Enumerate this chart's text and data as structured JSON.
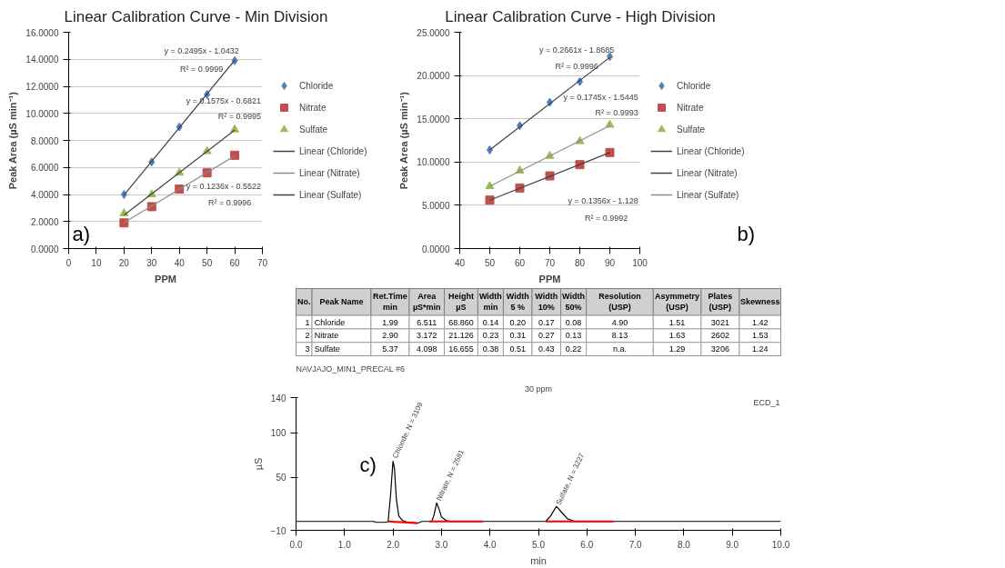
{
  "chart_data": [
    {
      "type": "scatter",
      "title": "Linear Calibration Curve - Min Division",
      "xlabel": "PPM",
      "ylabel": "Peak Area (µS min⁻¹)",
      "xlim": [
        0,
        70
      ],
      "xticks": [
        0,
        10,
        20,
        30,
        40,
        50,
        60,
        70
      ],
      "ylim": [
        0,
        16
      ],
      "yticks": [
        {
          "value": 0,
          "label": "0.0000"
        },
        {
          "value": 2,
          "label": "2.0000"
        },
        {
          "value": 4,
          "label": "4.0000"
        },
        {
          "value": 6,
          "label": "6.0000"
        },
        {
          "value": 8,
          "label": "8.0000"
        },
        {
          "value": 10,
          "label": "10.0000"
        },
        {
          "value": 12,
          "label": "12.0000"
        },
        {
          "value": 14,
          "label": "14.0000"
        },
        {
          "value": 16,
          "label": "16.0000"
        }
      ],
      "grid": "y",
      "legend": "right",
      "x": [
        20,
        30,
        40,
        50,
        60
      ],
      "series": [
        {
          "name": "Chloride",
          "color": "#4f81bd",
          "marker": "diamond",
          "values": [
            4.0,
            6.4,
            9.0,
            11.4,
            13.9
          ]
        },
        {
          "name": "Nitrate",
          "color": "#c0504d",
          "marker": "square",
          "values": [
            1.9,
            3.1,
            4.4,
            5.6,
            6.9
          ]
        },
        {
          "name": "Sulfate",
          "color": "#9bbb59",
          "marker": "triangle",
          "values": [
            2.6,
            4.0,
            5.6,
            7.2,
            8.8
          ]
        },
        {
          "name": "Linear (Chloride)",
          "type": "line",
          "color": "#404040",
          "x": [
            20,
            60
          ],
          "values": [
            3.95,
            13.93
          ]
        },
        {
          "name": "Linear (Nitrate)",
          "type": "line",
          "color": "#8c8c8c",
          "x": [
            20,
            60
          ],
          "values": [
            1.92,
            6.86
          ]
        },
        {
          "name": "Linear (Sulfate)",
          "type": "line",
          "color": "#404040",
          "x": [
            20,
            60
          ],
          "values": [
            2.47,
            8.77
          ]
        }
      ],
      "annotations": [
        "y = 0.2495x - 1.0432",
        "R² = 0.9999",
        "y = 0.1575x - 0.6821",
        "R² = 0.9995",
        "y = 0.1236x - 0.5522",
        "R² = 0.9996",
        "a)"
      ]
    },
    {
      "type": "scatter",
      "title": "Linear Calibration Curve - High Division",
      "xlabel": "PPM",
      "ylabel": "Peak Area (µS min⁻¹)",
      "xlim": [
        40,
        100
      ],
      "xticks": [
        40,
        50,
        60,
        70,
        80,
        90,
        100
      ],
      "ylim": [
        0,
        25
      ],
      "yticks": [
        {
          "value": 0,
          "label": "0.0000"
        },
        {
          "value": 5,
          "label": "5.0000"
        },
        {
          "value": 10,
          "label": "10.0000"
        },
        {
          "value": 15,
          "label": "15.0000"
        },
        {
          "value": 20,
          "label": "20.0000"
        },
        {
          "value": 25,
          "label": "25.0000"
        }
      ],
      "grid": "y",
      "legend": "right",
      "x": [
        50,
        60,
        70,
        80,
        90
      ],
      "series": [
        {
          "name": "Chloride",
          "color": "#4f81bd",
          "marker": "diamond",
          "values": [
            11.4,
            14.2,
            16.9,
            19.3,
            22.2
          ]
        },
        {
          "name": "Nitrate",
          "color": "#c0504d",
          "marker": "square",
          "values": [
            5.6,
            7.0,
            8.4,
            9.7,
            11.1
          ]
        },
        {
          "name": "Sulfate",
          "color": "#9bbb59",
          "marker": "triangle",
          "values": [
            7.2,
            9.0,
            10.7,
            12.4,
            14.3
          ]
        },
        {
          "name": "Linear (Chloride)",
          "type": "line",
          "color": "#404040",
          "x": [
            50,
            90
          ],
          "values": [
            11.4,
            22.1
          ]
        },
        {
          "name": "Linear (Nitrate)",
          "type": "line",
          "color": "#404040",
          "x": [
            50,
            90
          ],
          "values": [
            5.6,
            11.1
          ]
        },
        {
          "name": "Linear (Sulfate)",
          "type": "line",
          "color": "#8c8c8c",
          "x": [
            50,
            90
          ],
          "values": [
            7.2,
            14.2
          ]
        }
      ],
      "annotations": [
        "y = 0.2661x - 1.8685",
        "R² = 0.9996",
        "y = 0.1745x - 1.5445",
        "R² = 0.9993",
        "y = 0.1356x - 1.128",
        "R² = 0.9992",
        "b)"
      ]
    },
    {
      "type": "other",
      "categories": [
        "No.",
        "Peak Name",
        "Ret.Time\nmin",
        "Area\nµS*min",
        "Height\nµS",
        "Width\nmin",
        "Width\n5 %",
        "Width\n10%",
        "Width\n50%",
        "Resolution\n(USP)",
        "Asymmetry\n(USP)",
        "Plates\n(USP)",
        "Skewness"
      ],
      "cell_labels": [
        [
          "1",
          "Chloride",
          "1.99",
          "6.511",
          "68.860",
          "0.14",
          "0.20",
          "0.17",
          "0.08",
          "4.90",
          "1.51",
          "3021",
          "1.42"
        ],
        [
          "2",
          "Nitrate",
          "2.90",
          "3.172",
          "21.126",
          "0.23",
          "0.31",
          "0.27",
          "0.13",
          "8.13",
          "1.63",
          "2602",
          "1.53"
        ],
        [
          "3",
          "Sulfate",
          "5.37",
          "4.098",
          "16.655",
          "0.38",
          "0.51",
          "0.43",
          "0.22",
          "n.a.",
          "1.29",
          "3206",
          "1.24"
        ]
      ]
    },
    {
      "type": "line",
      "title": "NAVJAJO_MIN1_PRECAL #6",
      "subtitle": "30 ppm",
      "xlabel": "min",
      "ylabel": "µS",
      "xlim": [
        0,
        10
      ],
      "xticks": [
        {
          "value": 0,
          "label": "0.0"
        },
        {
          "value": 1,
          "label": "1.0"
        },
        {
          "value": 2,
          "label": "2.0"
        },
        {
          "value": 3,
          "label": "3.0"
        },
        {
          "value": 4,
          "label": "4.0"
        },
        {
          "value": 5,
          "label": "5.0"
        },
        {
          "value": 6,
          "label": "6.0"
        },
        {
          "value": 7,
          "label": "7.0"
        },
        {
          "value": 8,
          "label": "8.0"
        },
        {
          "value": 9,
          "label": "9.0"
        },
        {
          "value": 10,
          "label": "10.0"
        }
      ],
      "ylim": [
        -10,
        140
      ],
      "yticks": [
        -10,
        50,
        100,
        140
      ],
      "series": [
        {
          "color": "#000000",
          "x": [
            0,
            1.6,
            1.65,
            1.85,
            1.9,
            1.95,
            2.0,
            2.03,
            2.07,
            2.12,
            2.2,
            2.3,
            2.5,
            2.55,
            2.6,
            2.8,
            2.85,
            2.9,
            2.95,
            3.0,
            3.1,
            3.2,
            5.15,
            5.25,
            5.37,
            5.5,
            5.6,
            5.75,
            10
          ],
          "values": [
            0,
            0,
            -1,
            -1,
            0,
            30,
            68,
            60,
            25,
            6,
            1,
            -1,
            -2,
            -1,
            0,
            0,
            8,
            21,
            14,
            5,
            1,
            0,
            0,
            6,
            17,
            9,
            3,
            0,
            0
          ]
        },
        {
          "color": "#ff0000",
          "x": [
            1.9,
            2.5,
            null,
            2.75,
            3.85,
            null,
            5.15,
            6.55
          ],
          "values": [
            0,
            -2,
            null,
            0,
            0,
            null,
            0,
            0
          ]
        }
      ],
      "annotations": [
        {
          "text": "Chloride, N = 3109",
          "x": 2.0,
          "y": 72
        },
        {
          "text": "Nitrate, N = 2581",
          "x": 2.9,
          "y": 24
        },
        {
          "text": "Sulfate, N = 3227",
          "x": 5.37,
          "y": 19
        },
        "ECD_1",
        "c)"
      ]
    }
  ]
}
